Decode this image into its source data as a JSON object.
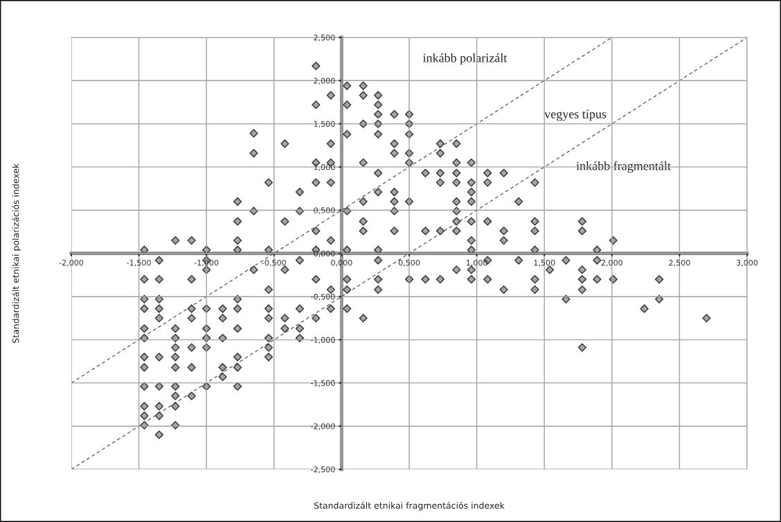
{
  "chart_data": {
    "type": "scatter",
    "xlabel": "Standardizált etnikai fragmentációs indexek",
    "ylabel": "Standardizált etnikai polarizációs indexek",
    "xlim": [
      -2,
      3
    ],
    "ylim": [
      -2.5,
      2.5
    ],
    "xticks": [
      {
        "value": -2,
        "label": "-2,000"
      },
      {
        "value": -1.5,
        "label": "-1,500"
      },
      {
        "value": -1,
        "label": "-1,000"
      },
      {
        "value": -0.5,
        "label": "-0,500"
      },
      {
        "value": 0,
        "label": "0,000"
      },
      {
        "value": 0.5,
        "label": "0,500"
      },
      {
        "value": 1,
        "label": "1,000"
      },
      {
        "value": 1.5,
        "label": "1,500"
      },
      {
        "value": 2,
        "label": "2,000"
      },
      {
        "value": 2.5,
        "label": "2,500"
      },
      {
        "value": 3,
        "label": "3,000"
      }
    ],
    "yticks": [
      {
        "value": -2.5,
        "label": "-2,500"
      },
      {
        "value": -2,
        "label": "-2,000"
      },
      {
        "value": -1.5,
        "label": "-1,500"
      },
      {
        "value": -1,
        "label": "-1,000"
      },
      {
        "value": -0.5,
        "label": "-0,500"
      },
      {
        "value": 0,
        "label": "0,000"
      },
      {
        "value": 0.5,
        "label": "0,500"
      },
      {
        "value": 1,
        "label": "1,000"
      },
      {
        "value": 1.5,
        "label": "1,500"
      },
      {
        "value": 2,
        "label": "2,000"
      },
      {
        "value": 2.5,
        "label": "2,500"
      }
    ],
    "grid": true,
    "marker": "diamond",
    "legend": false,
    "annotations": [
      "inkább polarizált",
      "vegyes típus",
      "inkább fragmentált"
    ],
    "series": [
      {
        "color": "#a6a6a6",
        "x": [
          -0.65,
          -0.42,
          -0.65,
          -0.54,
          -0.31,
          -0.77,
          -0.65,
          -0.31,
          -0.77,
          -0.42,
          -1.23,
          -1.11,
          -0.77,
          -1.46,
          -1.0,
          -0.77,
          -0.54,
          -1.35,
          -1.0,
          -0.31,
          -1.0,
          -0.65,
          -0.42,
          -1.46,
          -1.35,
          -1.11,
          -0.54,
          -1.46,
          -1.35,
          -0.77,
          -1.46,
          -1.35,
          -1.11,
          -1.0,
          -0.88,
          -0.77,
          -0.54,
          -0.31,
          -1.35,
          -1.11,
          -0.88,
          -0.54,
          -0.42,
          -1.46,
          -1.23,
          -1.0,
          -0.77,
          -0.42,
          -0.31,
          -1.46,
          -1.23,
          -1.0,
          -0.88,
          -0.54,
          -0.31,
          -1.23,
          -1.11,
          -1.0,
          -0.54,
          -1.46,
          -1.35,
          -1.23,
          -0.77,
          -0.54,
          -1.46,
          -1.23,
          -1.11,
          -0.88,
          -0.77,
          -0.88,
          -1.46,
          -1.35,
          -1.23,
          -1.0,
          -0.77,
          -1.23,
          -1.11,
          -1.46,
          -1.35,
          -1.23,
          -1.46,
          -1.35,
          -1.46,
          -1.23,
          -1.35,
          -0.19,
          0.04,
          0.16,
          -0.08,
          0.16,
          0.27,
          -0.19,
          0.04,
          0.27,
          0.27,
          0.39,
          0.5,
          0.16,
          0.27,
          0.5,
          0.04,
          0.27,
          0.5,
          -0.08,
          0.39,
          0.73,
          0.85,
          0.39,
          0.5,
          0.73,
          -0.19,
          -0.08,
          0.16,
          0.5,
          0.85,
          0.96,
          0.27,
          0.62,
          0.73,
          0.85,
          1.08,
          1.2,
          -0.19,
          -0.08,
          0.73,
          0.85,
          0.96,
          1.08,
          0.27,
          0.39,
          0.96,
          0.16,
          0.39,
          0.5,
          0.85,
          0.96,
          1.31,
          0.04,
          0.39,
          0.85,
          0.16,
          0.85,
          0.96,
          1.08,
          -0.19,
          0.16,
          0.39,
          0.62,
          0.73,
          0.85,
          1.2,
          -0.08,
          0.96,
          1.2,
          -0.19,
          0.04,
          0.27,
          0.96,
          0.27,
          1.08,
          1.31,
          0.85,
          0.96,
          -0.19,
          0.04,
          0.27,
          0.5,
          0.62,
          0.73,
          0.96,
          1.08,
          -0.08,
          0.04,
          0.27,
          1.2,
          -0.08,
          0.04,
          -0.19,
          0.16,
          1.43,
          1.43,
          1.78,
          1.43,
          1.78,
          2.01,
          1.43,
          1.89,
          1.66,
          1.89,
          1.54,
          1.78,
          1.43,
          1.78,
          1.89,
          2.01,
          2.35,
          1.43,
          1.78,
          1.66,
          2.35,
          2.24,
          2.7,
          1.78
        ],
        "values": [
          1.39,
          1.27,
          1.16,
          0.82,
          0.71,
          0.6,
          0.49,
          0.49,
          0.37,
          0.37,
          0.15,
          0.15,
          0.15,
          0.04,
          0.04,
          0.04,
          0.04,
          -0.08,
          -0.08,
          -0.08,
          -0.19,
          -0.19,
          -0.19,
          -0.3,
          -0.3,
          -0.3,
          -0.42,
          -0.53,
          -0.53,
          -0.53,
          -0.64,
          -0.64,
          -0.64,
          -0.64,
          -0.64,
          -0.64,
          -0.64,
          -0.64,
          -0.75,
          -0.75,
          -0.75,
          -0.75,
          -0.75,
          -0.87,
          -0.87,
          -0.87,
          -0.87,
          -0.87,
          -0.87,
          -0.98,
          -0.98,
          -0.98,
          -0.98,
          -0.98,
          -0.98,
          -1.09,
          -1.09,
          -1.09,
          -1.09,
          -1.2,
          -1.2,
          -1.2,
          -1.2,
          -1.2,
          -1.32,
          -1.32,
          -1.32,
          -1.32,
          -1.32,
          -1.43,
          -1.54,
          -1.54,
          -1.54,
          -1.54,
          -1.54,
          -1.65,
          -1.65,
          -1.77,
          -1.77,
          -1.77,
          -1.88,
          -1.88,
          -1.99,
          -1.99,
          -2.1,
          2.17,
          1.94,
          1.94,
          1.83,
          1.83,
          1.83,
          1.72,
          1.72,
          1.72,
          1.61,
          1.61,
          1.61,
          1.5,
          1.5,
          1.5,
          1.38,
          1.38,
          1.38,
          1.27,
          1.27,
          1.27,
          1.27,
          1.16,
          1.16,
          1.16,
          1.05,
          1.05,
          1.05,
          1.05,
          1.05,
          1.05,
          0.93,
          0.93,
          0.93,
          0.93,
          0.93,
          0.93,
          0.82,
          0.82,
          0.82,
          0.82,
          0.82,
          0.82,
          0.71,
          0.71,
          0.71,
          0.6,
          0.6,
          0.6,
          0.6,
          0.6,
          0.6,
          0.49,
          0.49,
          0.49,
          0.37,
          0.37,
          0.37,
          0.37,
          0.26,
          0.26,
          0.26,
          0.26,
          0.26,
          0.26,
          0.26,
          0.15,
          0.15,
          0.15,
          0.04,
          0.04,
          0.04,
          0.04,
          -0.08,
          -0.08,
          -0.08,
          -0.19,
          -0.19,
          -0.3,
          -0.3,
          -0.3,
          -0.3,
          -0.3,
          -0.3,
          -0.3,
          -0.3,
          -0.42,
          -0.42,
          -0.42,
          -0.42,
          -0.64,
          -0.64,
          -0.75,
          -0.75,
          0.82,
          0.37,
          0.37,
          0.26,
          0.26,
          0.15,
          0.04,
          0.04,
          -0.08,
          -0.08,
          -0.19,
          -0.19,
          -0.3,
          -0.3,
          -0.3,
          -0.3,
          -0.3,
          -0.42,
          -0.42,
          -0.53,
          -0.53,
          -0.64,
          -0.75,
          -1.09
        ]
      },
      {
        "type": "line",
        "color": "#555555",
        "line_style": "dashed",
        "marker": "none",
        "x": [
          -2,
          2
        ],
        "values": [
          -1.5,
          2.5
        ]
      },
      {
        "type": "line",
        "color": "#555555",
        "line_style": "dashed",
        "marker": "none",
        "x": [
          -2,
          3
        ],
        "values": [
          -2.5,
          2.5
        ]
      }
    ]
  }
}
